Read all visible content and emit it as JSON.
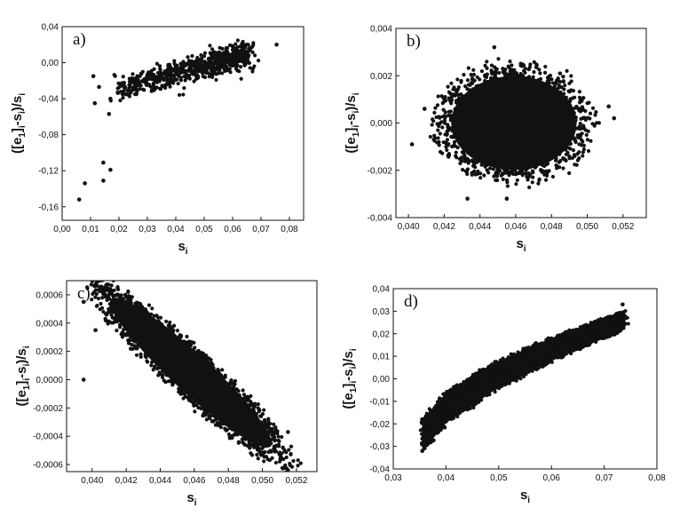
{
  "chart_data": [
    {
      "type": "scatter",
      "panel_label": "a)",
      "xlabel": "s",
      "xlabel_sub": "i",
      "ylabel_parts": [
        "([e",
        "1",
        "]",
        "i",
        "-s",
        "i",
        ")/s",
        "i"
      ],
      "xlim": [
        0.0,
        0.085
      ],
      "ylim": [
        -0.175,
        0.04
      ],
      "xticks": [
        "0,00",
        "0,01",
        "0,02",
        "0,03",
        "0,04",
        "0,05",
        "0,06",
        "0,07",
        "0,08"
      ],
      "xtick_values": [
        0.0,
        0.01,
        0.02,
        0.03,
        0.04,
        0.05,
        0.06,
        0.07,
        0.08
      ],
      "yticks": [
        "0,04",
        "0,00",
        "-0,04",
        "-0,08",
        "-0,12",
        "-0,16"
      ],
      "ytick_values": [
        0.04,
        0.0,
        -0.04,
        -0.08,
        -0.12,
        -0.16
      ],
      "cloud": {
        "shape": "band",
        "x_from": 0.02,
        "x_to": 0.065,
        "y_from": -0.03,
        "y_to": 0.01,
        "spread": 0.012,
        "count": 700
      },
      "points": [
        [
          0.006,
          -0.152
        ],
        [
          0.008,
          -0.134
        ],
        [
          0.0145,
          -0.111
        ],
        [
          0.017,
          -0.119
        ],
        [
          0.0145,
          -0.131
        ],
        [
          0.011,
          -0.015
        ],
        [
          0.0115,
          -0.045
        ],
        [
          0.0165,
          -0.057
        ],
        [
          0.0755,
          0.02
        ],
        [
          0.017,
          -0.04
        ],
        [
          0.013,
          -0.027
        ]
      ]
    },
    {
      "type": "scatter",
      "panel_label": "b)",
      "xlabel": "s",
      "xlabel_sub": "i",
      "ylabel_parts": [
        "([e",
        "1",
        "]",
        "i",
        "-s",
        "i",
        ")/s",
        "i"
      ],
      "xlim": [
        0.0393,
        0.0533
      ],
      "ylim": [
        -0.004,
        0.004
      ],
      "xticks": [
        "0,040",
        "0,042",
        "0,044",
        "0,046",
        "0,048",
        "0,050",
        "0,052"
      ],
      "xtick_values": [
        0.04,
        0.042,
        0.044,
        0.046,
        0.048,
        0.05,
        0.052
      ],
      "yticks": [
        "0,004",
        "0,002",
        "0,000",
        "-0,002",
        "-0,004"
      ],
      "ytick_values": [
        0.004,
        0.002,
        0.0,
        -0.002,
        -0.004
      ],
      "cloud": {
        "shape": "ellipse",
        "cx": 0.0459,
        "cy": 0.0,
        "rx": 0.0045,
        "ry": 0.00255,
        "tilt_deg": 0,
        "count": 1400
      },
      "points": [
        [
          0.0402,
          -0.0009
        ],
        [
          0.0515,
          0.0002
        ],
        [
          0.0512,
          0.0007
        ],
        [
          0.0448,
          0.0032
        ],
        [
          0.0455,
          -0.0032
        ],
        [
          0.0433,
          -0.0032
        ],
        [
          0.0409,
          0.0006
        ]
      ]
    },
    {
      "type": "scatter",
      "panel_label": "c)",
      "xlabel": "s",
      "xlabel_sub": "i",
      "ylabel_parts": [
        "([e",
        "1",
        "]",
        "i",
        "-s",
        "i",
        ")/s",
        "i"
      ],
      "xlim": [
        0.0385,
        0.0532
      ],
      "ylim": [
        -0.00065,
        0.0007
      ],
      "xticks": [
        "0,040",
        "0,042",
        "0,044",
        "0,046",
        "0,048",
        "0,050",
        "0,052"
      ],
      "xtick_values": [
        0.04,
        0.042,
        0.044,
        0.046,
        0.048,
        0.05,
        0.052
      ],
      "yticks": [
        "0,0006",
        "0,0004",
        "0,0002",
        "0,0000",
        "-0,0002",
        "-0,0004",
        "-0,0006"
      ],
      "ytick_values": [
        0.0006,
        0.0004,
        0.0002,
        0.0,
        -0.0002,
        -0.0004,
        -0.0006
      ],
      "cloud": {
        "shape": "ellipse",
        "cx": 0.0458,
        "cy": 5e-05,
        "rx": 0.0061,
        "ry": 0.00023,
        "tilt_slope": -0.000105,
        "count": 1500
      },
      "points": [
        [
          0.0395,
          0.00055
        ],
        [
          0.0395,
          0.0
        ],
        [
          0.0512,
          -0.00048
        ],
        [
          0.0515,
          -0.00037
        ],
        [
          0.0408,
          0.00042
        ],
        [
          0.0402,
          0.00035
        ]
      ]
    },
    {
      "type": "scatter",
      "panel_label": "d)",
      "xlabel": "s",
      "xlabel_sub": "i",
      "ylabel_parts": [
        "([e",
        "1",
        "]",
        "i",
        "-s",
        "i",
        ")/s",
        "i"
      ],
      "xlim": [
        0.03,
        0.08
      ],
      "ylim": [
        -0.04,
        0.04
      ],
      "xticks": [
        "0,03",
        "0,04",
        "0,05",
        "0,06",
        "0,07",
        "0,08"
      ],
      "xtick_values": [
        0.03,
        0.04,
        0.05,
        0.06,
        0.07,
        0.08
      ],
      "yticks": [
        "0,04",
        "0,03",
        "0,02",
        "0,01",
        "0,00",
        "-0,01",
        "-0,02",
        "-0,03",
        "-0,04"
      ],
      "ytick_values": [
        0.04,
        0.03,
        0.02,
        0.01,
        0.0,
        -0.01,
        -0.02,
        -0.03,
        -0.04
      ],
      "cloud": {
        "shape": "curve",
        "x_from": 0.0355,
        "x_to": 0.074,
        "curve_points": [
          [
            0.0355,
            -0.025
          ],
          [
            0.04,
            -0.013
          ],
          [
            0.05,
            0.002
          ],
          [
            0.06,
            0.013
          ],
          [
            0.074,
            0.026
          ]
        ],
        "half_width_start": 0.007,
        "half_width_end": 0.004,
        "count": 1600
      },
      "points": [
        [
          0.0355,
          -0.032
        ],
        [
          0.0355,
          -0.018
        ],
        [
          0.0735,
          0.033
        ]
      ]
    }
  ]
}
